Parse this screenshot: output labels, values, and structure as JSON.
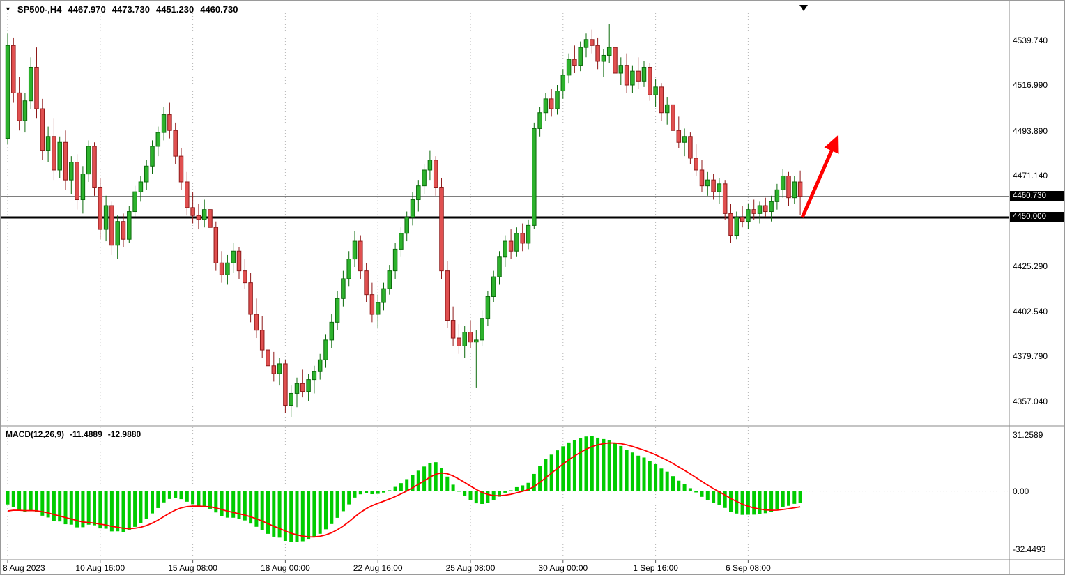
{
  "header": {
    "symbol_period": "SP500-,H4",
    "open": "4467.970",
    "high": "4473.730",
    "low": "4451.230",
    "close": "4460.730"
  },
  "icons": {
    "collapse": "▼"
  },
  "indicator": {
    "name": "MACD(12,26,9)",
    "macd_value": "-11.4889",
    "signal_value": "-12.9880"
  },
  "price_axis": {
    "labels": [
      "4539.740",
      "4516.990",
      "4493.890",
      "4471.140",
      "4425.290",
      "4402.540",
      "4379.790",
      "4357.040"
    ],
    "values": [
      4539.74,
      4516.99,
      4493.89,
      4471.14,
      4425.29,
      4402.54,
      4379.79,
      4357.04
    ],
    "bid_label": "4460.730",
    "bid_value": 4460.73,
    "level_label": "4450.000",
    "level_value": 4450.0
  },
  "macd_axis": {
    "labels": [
      "31.2589",
      "0.00",
      "-32.4493"
    ],
    "values": [
      31.2589,
      0,
      -32.4493
    ]
  },
  "time_axis": {
    "labels": [
      "8 Aug 2023",
      "10 Aug 16:00",
      "15 Aug 08:00",
      "18 Aug 00:00",
      "22 Aug 16:00",
      "25 Aug 08:00",
      "30 Aug 00:00",
      "1 Sep 16:00",
      "6 Sep 08:00"
    ],
    "bar_indices": [
      0,
      16,
      32,
      48,
      64,
      80,
      96,
      112,
      128
    ]
  },
  "chart_data": {
    "type": "candlestick",
    "title": "SP500- H4 candlestick chart with MACD(12,26,9) sub-window",
    "symbol": "SP500-",
    "timeframe": "H4",
    "price_range": [
      4346.0,
      4550.5
    ],
    "macd_range": [
      -36.6,
      34.0
    ],
    "grid": "vertical period separators, dotted",
    "candles_format": [
      "open",
      "high",
      "low",
      "close"
    ],
    "candles": [
      [
        4490,
        4543,
        4487,
        4537
      ],
      [
        4537,
        4541,
        4508,
        4513
      ],
      [
        4513,
        4521,
        4494,
        4499
      ],
      [
        4499,
        4513,
        4493,
        4509
      ],
      [
        4509,
        4531,
        4505,
        4526
      ],
      [
        4526,
        4536,
        4500,
        4505
      ],
      [
        4505,
        4510,
        4479,
        4484
      ],
      [
        4484,
        4496,
        4478,
        4491
      ],
      [
        4491,
        4500,
        4469,
        4474
      ],
      [
        4474,
        4491,
        4470,
        4488
      ],
      [
        4488,
        4494,
        4464,
        4469
      ],
      [
        4469,
        4481,
        4462,
        4478
      ],
      [
        4478,
        4482,
        4454,
        4459
      ],
      [
        4459,
        4476,
        4452,
        4472
      ],
      [
        4472,
        4489,
        4468,
        4486
      ],
      [
        4486,
        4488,
        4461,
        4465
      ],
      [
        4465,
        4470,
        4439,
        4444
      ],
      [
        4444,
        4461,
        4438,
        4456
      ],
      [
        4456,
        4458,
        4431,
        4436
      ],
      [
        4436,
        4451,
        4429,
        4448
      ],
      [
        4448,
        4452,
        4435,
        4439
      ],
      [
        4439,
        4456,
        4437,
        4453
      ],
      [
        4453,
        4466,
        4450,
        4463
      ],
      [
        4463,
        4471,
        4458,
        4468
      ],
      [
        4468,
        4479,
        4464,
        4476
      ],
      [
        4476,
        4489,
        4472,
        4486
      ],
      [
        4486,
        4496,
        4481,
        4493
      ],
      [
        4493,
        4506,
        4489,
        4502
      ],
      [
        4502,
        4508,
        4490,
        4494
      ],
      [
        4494,
        4498,
        4477,
        4481
      ],
      [
        4481,
        4485,
        4464,
        4468
      ],
      [
        4468,
        4473,
        4451,
        4455
      ],
      [
        4455,
        4463,
        4447,
        4451
      ],
      [
        4451,
        4457,
        4444,
        4449
      ],
      [
        4449,
        4459,
        4445,
        4454
      ],
      [
        4454,
        4456,
        4441,
        4445
      ],
      [
        4445,
        4448,
        4423,
        4427
      ],
      [
        4427,
        4433,
        4417,
        4421
      ],
      [
        4421,
        4431,
        4416,
        4427
      ],
      [
        4427,
        4437,
        4422,
        4433
      ],
      [
        4433,
        4435,
        4419,
        4423
      ],
      [
        4423,
        4429,
        4414,
        4417
      ],
      [
        4417,
        4422,
        4397,
        4401
      ],
      [
        4401,
        4409,
        4389,
        4393
      ],
      [
        4393,
        4400,
        4379,
        4383
      ],
      [
        4383,
        4391,
        4371,
        4375
      ],
      [
        4375,
        4382,
        4367,
        4371
      ],
      [
        4371,
        4379,
        4365,
        4376
      ],
      [
        4376,
        4378,
        4351,
        4355
      ],
      [
        4355,
        4365,
        4349,
        4361
      ],
      [
        4361,
        4369,
        4354,
        4366
      ],
      [
        4366,
        4373,
        4359,
        4362
      ],
      [
        4362,
        4371,
        4357,
        4368
      ],
      [
        4368,
        4375,
        4361,
        4372
      ],
      [
        4372,
        4381,
        4368,
        4378
      ],
      [
        4378,
        4391,
        4374,
        4388
      ],
      [
        4388,
        4401,
        4384,
        4397
      ],
      [
        4397,
        4413,
        4393,
        4409
      ],
      [
        4409,
        4423,
        4405,
        4419
      ],
      [
        4419,
        4433,
        4415,
        4429
      ],
      [
        4429,
        4443,
        4425,
        4438
      ],
      [
        4438,
        4441,
        4419,
        4423
      ],
      [
        4423,
        4427,
        4407,
        4411
      ],
      [
        4411,
        4417,
        4397,
        4401
      ],
      [
        4401,
        4411,
        4394,
        4407
      ],
      [
        4407,
        4417,
        4403,
        4414
      ],
      [
        4414,
        4426,
        4411,
        4423
      ],
      [
        4423,
        4437,
        4419,
        4434
      ],
      [
        4434,
        4445,
        4430,
        4442
      ],
      [
        4442,
        4453,
        4438,
        4450
      ],
      [
        4450,
        4463,
        4446,
        4459
      ],
      [
        4459,
        4469,
        4453,
        4466
      ],
      [
        4466,
        4477,
        4462,
        4474
      ],
      [
        4474,
        4484,
        4469,
        4479
      ],
      [
        4479,
        4481,
        4461,
        4465
      ],
      [
        4465,
        4470,
        4419,
        4423
      ],
      [
        4423,
        4428,
        4394,
        4398
      ],
      [
        4398,
        4405,
        4385,
        4389
      ],
      [
        4389,
        4396,
        4381,
        4385
      ],
      [
        4385,
        4395,
        4379,
        4392
      ],
      [
        4392,
        4398,
        4384,
        4387
      ],
      [
        4387,
        4393,
        4364,
        4388
      ],
      [
        4388,
        4403,
        4385,
        4399
      ],
      [
        4399,
        4413,
        4395,
        4410
      ],
      [
        4410,
        4423,
        4407,
        4420
      ],
      [
        4420,
        4433,
        4416,
        4430
      ],
      [
        4430,
        4441,
        4425,
        4438
      ],
      [
        4438,
        4444,
        4429,
        4433
      ],
      [
        4433,
        4445,
        4430,
        4442
      ],
      [
        4442,
        4447,
        4433,
        4437
      ],
      [
        4437,
        4449,
        4434,
        4446
      ],
      [
        4446,
        4498,
        4444,
        4495
      ],
      [
        4495,
        4506,
        4491,
        4503
      ],
      [
        4503,
        4513,
        4499,
        4510
      ],
      [
        4510,
        4515,
        4501,
        4505
      ],
      [
        4505,
        4517,
        4502,
        4514
      ],
      [
        4514,
        4525,
        4510,
        4522
      ],
      [
        4522,
        4533,
        4518,
        4530
      ],
      [
        4530,
        4537,
        4523,
        4527
      ],
      [
        4527,
        4539,
        4524,
        4536
      ],
      [
        4536,
        4543,
        4531,
        4540
      ],
      [
        4540,
        4545,
        4533,
        4537
      ],
      [
        4537,
        4541,
        4525,
        4529
      ],
      [
        4529,
        4535,
        4521,
        4532
      ],
      [
        4532,
        4548,
        4528,
        4536
      ],
      [
        4536,
        4539,
        4519,
        4523
      ],
      [
        4523,
        4531,
        4517,
        4527
      ],
      [
        4527,
        4533,
        4513,
        4517
      ],
      [
        4517,
        4527,
        4513,
        4524
      ],
      [
        4524,
        4531,
        4515,
        4519
      ],
      [
        4519,
        4529,
        4516,
        4526
      ],
      [
        4526,
        4528,
        4509,
        4512
      ],
      [
        4512,
        4520,
        4506,
        4516
      ],
      [
        4516,
        4518,
        4499,
        4503
      ],
      [
        4503,
        4511,
        4497,
        4507
      ],
      [
        4507,
        4509,
        4491,
        4494
      ],
      [
        4494,
        4501,
        4485,
        4488
      ],
      [
        4488,
        4495,
        4481,
        4491
      ],
      [
        4491,
        4493,
        4477,
        4480
      ],
      [
        4480,
        4487,
        4471,
        4474
      ],
      [
        4474,
        4479,
        4463,
        4466
      ],
      [
        4466,
        4473,
        4461,
        4469
      ],
      [
        4469,
        4472,
        4459,
        4463
      ],
      [
        4463,
        4470,
        4457,
        4467
      ],
      [
        4467,
        4469,
        4449,
        4452
      ],
      [
        4452,
        4457,
        4437,
        4441
      ],
      [
        4441,
        4453,
        4439,
        4450
      ],
      [
        4450,
        4456,
        4445,
        4448
      ],
      [
        4448,
        4457,
        4444,
        4454
      ],
      [
        4454,
        4459,
        4449,
        4452
      ],
      [
        4452,
        4458,
        4447,
        4456
      ],
      [
        4456,
        4460,
        4450,
        4453
      ],
      [
        4453,
        4461,
        4448,
        4458
      ],
      [
        4458,
        4467,
        4454,
        4464
      ],
      [
        4464,
        4474.5,
        4460,
        4471
      ],
      [
        4471,
        4473,
        4456,
        4460
      ],
      [
        4460,
        4471,
        4457,
        4468
      ],
      [
        4467.97,
        4473.73,
        4451.23,
        4460.73
      ]
    ],
    "macd": {
      "fast": 12,
      "slow": 26,
      "signal_period": 9,
      "last_macd": -11.4889,
      "last_signal": -12.988,
      "axis_ticks": [
        31.2589,
        0,
        -32.4493
      ]
    },
    "annotations": {
      "horizontal_line": 4450.0,
      "bid_price_line": 4460.73,
      "trend_arrow": {
        "shape": "up-right red arrow",
        "from_price": 4452,
        "to_price": 4492,
        "after_last_bar": true
      }
    },
    "legend_position": "none"
  },
  "colors": {
    "up": "#2db22d",
    "up_border": "#0c6b0c",
    "down": "#e05050",
    "down_border": "#8f1a1a",
    "macd_hist": "#00cc00",
    "signal": "#ff0000",
    "arrow": "#ff0000",
    "grid": "#b4b4b4",
    "hline": "#000000",
    "bid_line": "#6b6b6b",
    "separator": "#8a8a8a",
    "badge_bg": "#000000",
    "badge_text": "#ffffff"
  }
}
